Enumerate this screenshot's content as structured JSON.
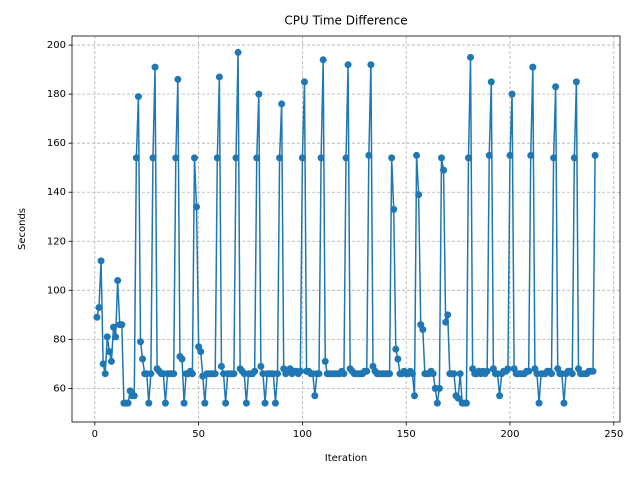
{
  "chart_data": {
    "type": "line",
    "title": "CPU Time Difference",
    "x_label": "Iteration",
    "y_label": "Seconds",
    "x": [
      1,
      2,
      3,
      4,
      5,
      6,
      7,
      8,
      9,
      10,
      11,
      12,
      13,
      14,
      15,
      16,
      17,
      18,
      19,
      20,
      21,
      22,
      23,
      24,
      25,
      26,
      27,
      28,
      29,
      30,
      31,
      32,
      33,
      34,
      35,
      36,
      37,
      38,
      39,
      40,
      41,
      42,
      43,
      44,
      45,
      46,
      47,
      48,
      49,
      50,
      51,
      52,
      53,
      54,
      55,
      56,
      57,
      58,
      59,
      60,
      61,
      62,
      63,
      64,
      65,
      66,
      67,
      68,
      69,
      70,
      71,
      72,
      73,
      74,
      75,
      76,
      77,
      78,
      79,
      80,
      81,
      82,
      83,
      84,
      85,
      86,
      87,
      88,
      89,
      90,
      91,
      92,
      93,
      94,
      95,
      96,
      97,
      98,
      99,
      100,
      101,
      102,
      103,
      104,
      105,
      106,
      107,
      108,
      109,
      110,
      111,
      112,
      113,
      114,
      115,
      116,
      117,
      118,
      119,
      120,
      121,
      122,
      123,
      124,
      125,
      126,
      127,
      128,
      129,
      130,
      131,
      132,
      133,
      134,
      135,
      136,
      137,
      138,
      139,
      140,
      141,
      142,
      143,
      144,
      145,
      146,
      147,
      148,
      149,
      150,
      151,
      152,
      153,
      154,
      155,
      156,
      157,
      158,
      159,
      160,
      161,
      162,
      163,
      164,
      165,
      166,
      167,
      168,
      169,
      170,
      171,
      172,
      173,
      174,
      175,
      176,
      177,
      178,
      179,
      180,
      181,
      182,
      183,
      184,
      185,
      186,
      187,
      188,
      189,
      190,
      191,
      192,
      193,
      194,
      195,
      196,
      197,
      198,
      199,
      200,
      201,
      202,
      203,
      204,
      205,
      206,
      207,
      208,
      209,
      210,
      211,
      212,
      213,
      214,
      215,
      216,
      217,
      218,
      219,
      220,
      221,
      222,
      223,
      224,
      225,
      226,
      227,
      228,
      229,
      230,
      231,
      232,
      233,
      234,
      235,
      236,
      237,
      238,
      239,
      240,
      241
    ],
    "series": [
      {
        "color": "#1f77b4",
        "values": [
          89,
          93,
          112,
          70,
          66,
          81,
          75,
          71,
          85,
          81,
          104,
          86,
          86,
          54,
          54,
          54,
          59,
          57,
          57,
          154,
          179,
          79,
          72,
          66,
          66,
          54,
          66,
          154,
          191,
          68,
          67,
          66,
          66,
          54,
          66,
          66,
          66,
          66,
          154,
          186,
          73,
          72,
          54,
          66,
          66,
          67,
          66,
          154,
          134,
          77,
          75,
          65,
          54,
          66,
          66,
          66,
          66,
          66,
          154,
          187,
          69,
          66,
          54,
          66,
          66,
          66,
          66,
          154,
          197,
          68,
          67,
          66,
          54,
          66,
          66,
          66,
          67,
          154,
          180,
          69,
          66,
          54,
          66,
          66,
          66,
          66,
          54,
          66,
          154,
          176,
          68,
          66,
          67,
          68,
          66,
          67,
          67,
          66,
          67,
          154,
          185,
          67,
          67,
          66,
          66,
          57,
          66,
          66,
          154,
          194,
          71,
          66,
          66,
          66,
          66,
          66,
          66,
          66,
          67,
          66,
          154,
          192,
          68,
          67,
          66,
          66,
          66,
          66,
          66,
          67,
          67,
          155,
          192,
          69,
          67,
          66,
          66,
          66,
          66,
          66,
          66,
          66,
          154,
          133,
          76,
          72,
          66,
          66,
          67,
          66,
          66,
          67,
          66,
          57,
          155,
          139,
          86,
          84,
          66,
          66,
          66,
          67,
          66,
          60,
          54,
          60,
          154,
          149,
          87,
          90,
          66,
          66,
          66,
          57,
          56,
          66,
          54,
          54,
          54,
          154,
          195,
          68,
          66,
          66,
          67,
          66,
          67,
          66,
          67,
          155,
          185,
          68,
          66,
          66,
          57,
          66,
          67,
          67,
          68,
          155,
          180,
          68,
          66,
          66,
          66,
          66,
          66,
          67,
          67,
          155,
          191,
          68,
          66,
          54,
          66,
          66,
          66,
          67,
          67,
          66,
          154,
          183,
          68,
          66,
          66,
          54,
          66,
          67,
          67,
          66,
          154,
          185,
          68,
          66,
          66,
          66,
          66,
          67,
          67,
          67,
          155
        ]
      }
    ],
    "xlim": [
      -11,
      253
    ],
    "ylim": [
      46.3,
      203.7
    ],
    "xticks": [
      0,
      50,
      100,
      150,
      200,
      250
    ],
    "yticks": [
      60,
      80,
      100,
      120,
      140,
      160,
      180,
      200
    ],
    "grid": true
  }
}
